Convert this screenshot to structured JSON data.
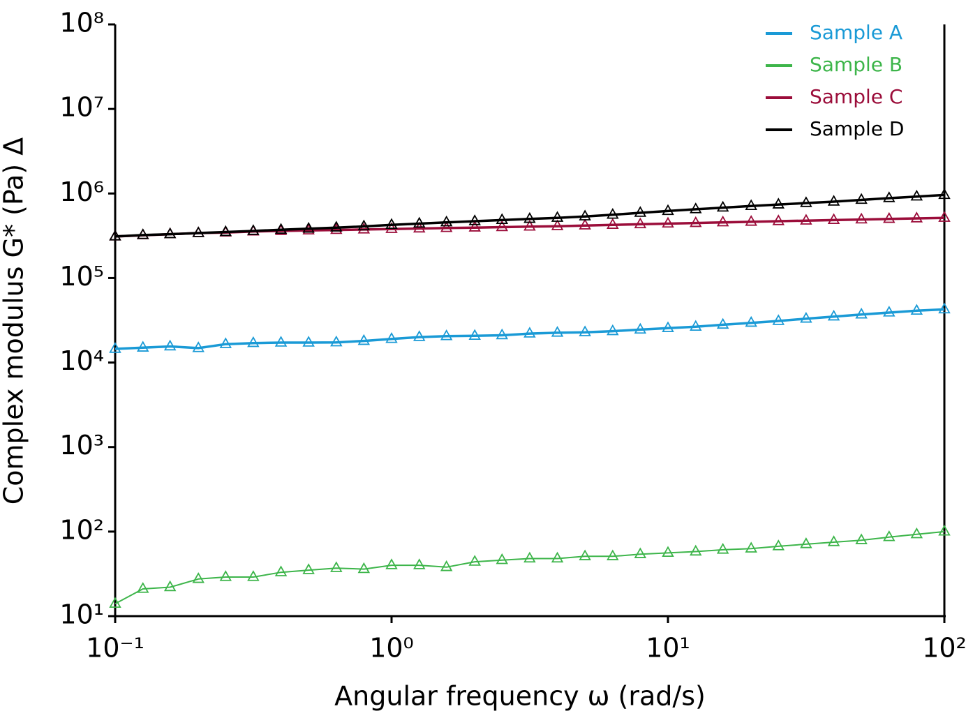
{
  "chart_data": {
    "type": "line",
    "xlabel": "Angular frequency ω (rad/s)",
    "ylabel": "Complex modulus G* (Pa) Δ",
    "xscale": "log",
    "yscale": "log",
    "marker": "triangle",
    "legend": "upper right",
    "xlim": [
      0.1,
      100
    ],
    "ylim": [
      10,
      100000000
    ],
    "xticks": [
      {
        "value": 0.1,
        "label": "10⁻¹"
      },
      {
        "value": 1,
        "label": "10⁰"
      },
      {
        "value": 10,
        "label": "10¹"
      },
      {
        "value": 100,
        "label": "10²"
      }
    ],
    "yticks": [
      {
        "value": 10,
        "label": "10¹"
      },
      {
        "value": 100,
        "label": "10²"
      },
      {
        "value": 1000,
        "label": "10³"
      },
      {
        "value": 10000,
        "label": "10⁴"
      },
      {
        "value": 100000,
        "label": "10⁵"
      },
      {
        "value": 1000000,
        "label": "10⁶"
      },
      {
        "value": 10000000,
        "label": "10⁷"
      },
      {
        "value": 100000000,
        "label": "10⁸"
      }
    ],
    "x": [
      0.1,
      0.126,
      0.158,
      0.2,
      0.251,
      0.316,
      0.398,
      0.501,
      0.631,
      0.794,
      1,
      1.26,
      1.58,
      2,
      2.51,
      3.16,
      3.98,
      5.01,
      6.31,
      7.94,
      10,
      12.6,
      15.8,
      20,
      25.1,
      31.6,
      39.8,
      50.1,
      63.1,
      79.4,
      100
    ],
    "series": [
      {
        "name": "Sample A",
        "color": "#1a9ad6",
        "values": [
          14500,
          15000,
          15500,
          14800,
          16500,
          17000,
          17200,
          17200,
          17300,
          18000,
          19000,
          20000,
          20500,
          20700,
          21000,
          22000,
          22500,
          22800,
          23500,
          24500,
          25500,
          26500,
          28000,
          29500,
          31000,
          33000,
          35000,
          37000,
          39000,
          41000,
          42500
        ]
      },
      {
        "name": "Sample B",
        "color": "#3db54a",
        "values": [
          14,
          21,
          22,
          27.5,
          29,
          29,
          33,
          35,
          37,
          36,
          40,
          40,
          38,
          44,
          46,
          48,
          48,
          51,
          51,
          54,
          56,
          58,
          61,
          63,
          67,
          71,
          75,
          79,
          86,
          93,
          100
        ]
      },
      {
        "name": "Sample C",
        "color": "#9b0d3a",
        "values": [
          310000,
          320000,
          330000,
          340000,
          345000,
          355000,
          360000,
          365000,
          370000,
          375000,
          380000,
          385000,
          390000,
          395000,
          400000,
          405000,
          410000,
          418000,
          425000,
          432000,
          440000,
          447000,
          455000,
          462000,
          470000,
          477000,
          485000,
          492000,
          500000,
          507000,
          515000
        ]
      },
      {
        "name": "Sample D",
        "color": "#000000",
        "values": [
          310000,
          322000,
          330000,
          340000,
          350000,
          360000,
          372000,
          383000,
          395000,
          408000,
          425000,
          440000,
          455000,
          470000,
          485000,
          500000,
          515000,
          535000,
          560000,
          590000,
          620000,
          650000,
          680000,
          710000,
          740000,
          770000,
          800000,
          840000,
          880000,
          920000,
          960000
        ]
      }
    ]
  }
}
